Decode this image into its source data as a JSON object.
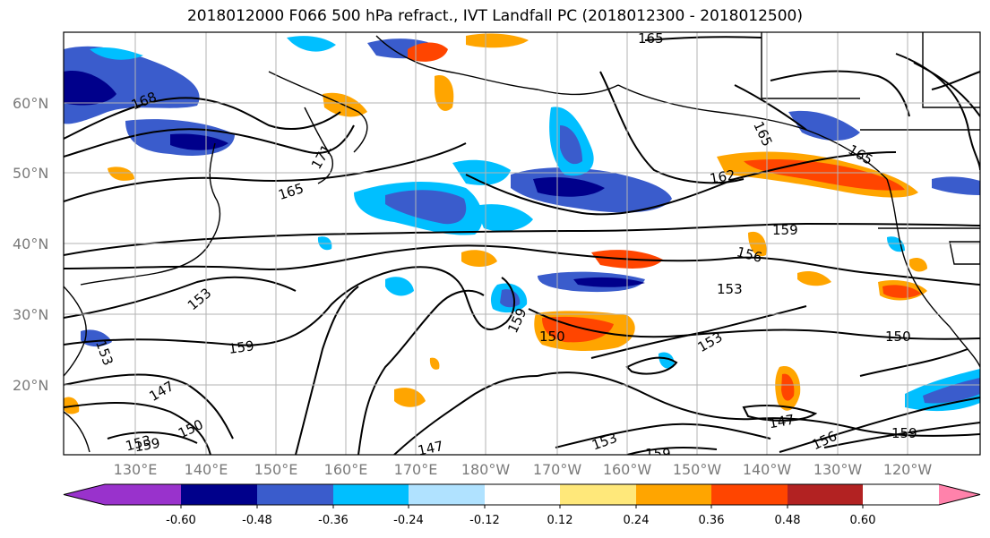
{
  "title": "2018012000 F066 500 hPa refract., IVT Landfall PC (2018012300 - 2018012500)",
  "lat_ticks": [
    "60°N",
    "50°N",
    "40°N",
    "30°N",
    "20°N"
  ],
  "lon_ticks": [
    "130°E",
    "140°E",
    "150°E",
    "160°E",
    "170°E",
    "180°W",
    "170°W",
    "160°W",
    "150°W",
    "140°W",
    "130°W",
    "120°W"
  ],
  "colorbar": {
    "colors": [
      "#9932cc",
      "#00008b",
      "#3a5ccc",
      "#00bfff",
      "#b0e2ff",
      "#ffffff",
      "#ffe87a",
      "#ffa500",
      "#ff4500",
      "#b22222",
      "#ff82ab"
    ],
    "labels": [
      "-0.60",
      "-0.48",
      "-0.36",
      "-0.24",
      "-0.12",
      "0.12",
      "0.24",
      "0.36",
      "0.48",
      "0.60"
    ]
  },
  "contour_labels": [
    "165",
    "168",
    "165",
    "171",
    "162",
    "165",
    "165",
    "159",
    "156",
    "153",
    "153",
    "159",
    "159",
    "150",
    "153",
    "150",
    "147",
    "150",
    "147",
    "147",
    "153",
    "159",
    "156",
    "159",
    "153",
    "153",
    "159"
  ]
}
